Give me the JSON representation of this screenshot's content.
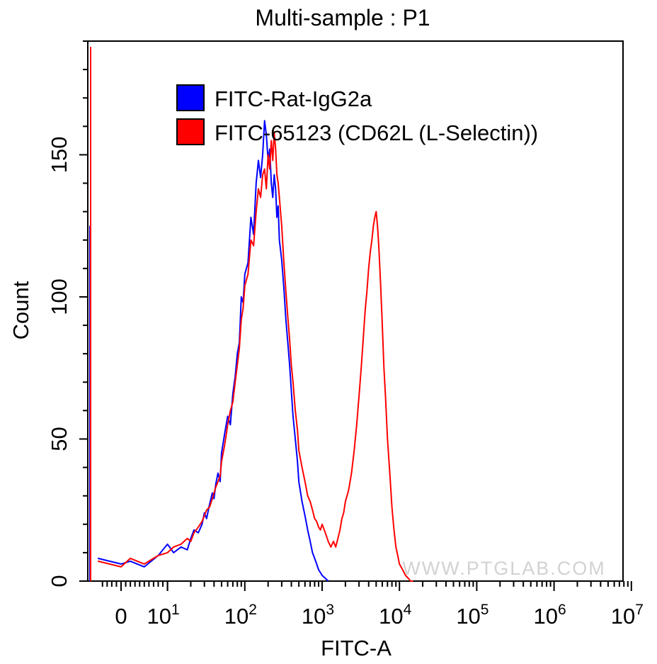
{
  "chart_data": {
    "type": "histogram",
    "title": "Multi-sample : P1",
    "xlabel": "FITC-A",
    "ylabel": "Count",
    "x_scale": "biexponential (log above 10^1)",
    "ylim": [
      0,
      190
    ],
    "y_ticks": [
      "0",
      "50",
      "100",
      "150"
    ],
    "x_ticks": [
      {
        "base": "0",
        "exp": ""
      },
      {
        "base": "10",
        "exp": "1"
      },
      {
        "base": "10",
        "exp": "2"
      },
      {
        "base": "10",
        "exp": "3"
      },
      {
        "base": "10",
        "exp": "4"
      },
      {
        "base": "10",
        "exp": "5"
      },
      {
        "base": "10",
        "exp": "6"
      },
      {
        "base": "10",
        "exp": "7"
      }
    ],
    "legend_position": "top-left",
    "watermark": "WWW.PTGLAB.COM",
    "series": [
      {
        "name": "FITC-Rat-IgG2a",
        "color": "#0000ff",
        "x": [
          -5,
          0,
          2,
          5,
          8,
          10,
          12,
          15,
          18,
          20,
          22,
          25,
          28,
          30,
          32,
          35,
          38,
          40,
          42,
          45,
          48,
          50,
          55,
          60,
          65,
          70,
          75,
          80,
          85,
          90,
          95,
          100,
          110,
          120,
          130,
          140,
          150,
          160,
          170,
          180,
          190,
          200,
          210,
          220,
          230,
          240,
          250,
          260,
          270,
          280,
          300,
          320,
          340,
          360,
          380,
          400,
          420,
          450,
          480,
          500,
          550,
          600,
          650,
          700,
          750,
          800,
          850,
          900,
          950,
          1000,
          1100,
          1200
        ],
        "y": [
          8,
          6,
          7,
          5,
          9,
          13,
          10,
          12,
          11,
          15,
          18,
          17,
          20,
          24,
          22,
          27,
          31,
          29,
          34,
          38,
          35,
          45,
          52,
          58,
          55,
          66,
          72,
          80,
          84,
          100,
          98,
          108,
          112,
          128,
          122,
          140,
          148,
          142,
          150,
          162,
          157,
          148,
          152,
          140,
          135,
          143,
          138,
          128,
          132,
          120,
          113,
          103,
          92,
          84,
          76,
          67,
          58,
          50,
          42,
          35,
          28,
          23,
          18,
          14,
          10,
          8,
          6,
          4,
          3,
          2,
          1,
          0
        ]
      },
      {
        "name": "FITC-65123 (CD62L (L-Selectin))",
        "color": "#ff0000",
        "x": [
          -5,
          0,
          2,
          5,
          8,
          10,
          12,
          15,
          18,
          20,
          22,
          25,
          28,
          30,
          32,
          35,
          38,
          40,
          42,
          45,
          48,
          50,
          55,
          60,
          65,
          70,
          75,
          80,
          85,
          90,
          95,
          100,
          110,
          120,
          130,
          140,
          150,
          160,
          170,
          180,
          190,
          200,
          210,
          220,
          230,
          240,
          250,
          260,
          270,
          280,
          300,
          320,
          340,
          360,
          380,
          400,
          420,
          450,
          480,
          500,
          550,
          600,
          650,
          700,
          750,
          800,
          850,
          900,
          950,
          1000,
          1100,
          1200,
          1300,
          1400,
          1500,
          1600,
          1700,
          1800,
          1900,
          2000,
          2200,
          2400,
          2600,
          2800,
          3000,
          3200,
          3400,
          3600,
          3800,
          4000,
          4200,
          4400,
          4600,
          4800,
          5000,
          5200,
          5400,
          5700,
          6000,
          6300,
          6600,
          7000,
          7500,
          8000,
          8500,
          9000,
          9500,
          10000,
          11000,
          12000,
          13000,
          14000,
          15000
        ],
        "y": [
          7,
          5,
          8,
          6,
          9,
          10,
          12,
          13,
          15,
          14,
          17,
          19,
          21,
          23,
          25,
          26,
          29,
          31,
          33,
          35,
          37,
          42,
          48,
          55,
          60,
          63,
          70,
          76,
          82,
          92,
          96,
          104,
          108,
          120,
          118,
          130,
          138,
          135,
          143,
          145,
          138,
          150,
          145,
          155,
          148,
          158,
          152,
          143,
          140,
          135,
          125,
          112,
          102,
          93,
          85,
          76,
          70,
          60,
          53,
          46,
          40,
          35,
          30,
          28,
          25,
          22,
          21,
          19,
          18,
          20,
          17,
          14,
          12,
          14,
          12,
          15,
          18,
          22,
          24,
          28,
          32,
          38,
          46,
          55,
          65,
          75,
          85,
          95,
          102,
          110,
          116,
          120,
          125,
          128,
          130,
          125,
          118,
          105,
          90,
          75,
          65,
          50,
          38,
          26,
          18,
          12,
          9,
          6,
          4,
          2,
          1,
          0,
          0
        ]
      }
    ]
  }
}
